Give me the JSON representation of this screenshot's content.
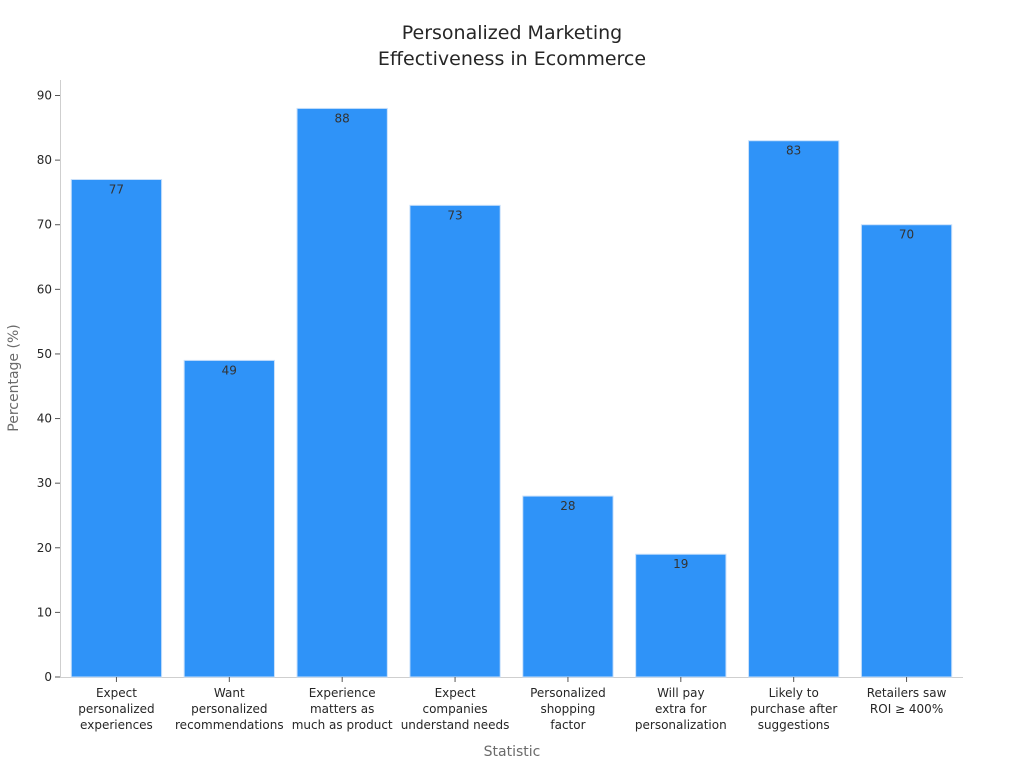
{
  "chart_data": {
    "type": "bar",
    "title_lines": [
      "Personalized Marketing",
      "Effectiveness in Ecommerce"
    ],
    "xlabel": "Statistic",
    "ylabel": "Percentage (%)",
    "ylim": [
      0,
      92.4
    ],
    "yticks": [
      0,
      10,
      20,
      30,
      40,
      50,
      60,
      70,
      80,
      90
    ],
    "grid": false,
    "bar_color": "#2f93f8",
    "bar_edge_color": "#c8e0fb",
    "categories": [
      [
        "Expect",
        "personalized",
        "experiences"
      ],
      [
        "Want",
        "personalized",
        "recommendations"
      ],
      [
        "Experience",
        "matters as",
        "much as product"
      ],
      [
        "Expect",
        "companies",
        "understand needs"
      ],
      [
        "Personalized",
        "shopping",
        "factor"
      ],
      [
        "Will pay",
        "extra for",
        "personalization"
      ],
      [
        "Likely to",
        "purchase after",
        "suggestions"
      ],
      [
        "Retailers saw",
        "ROI ≥ 400%"
      ]
    ],
    "values": [
      77,
      49,
      88,
      73,
      28,
      19,
      83,
      70
    ],
    "data_labels": [
      "77",
      "49",
      "88",
      "73",
      "28",
      "19",
      "83",
      "70"
    ]
  }
}
